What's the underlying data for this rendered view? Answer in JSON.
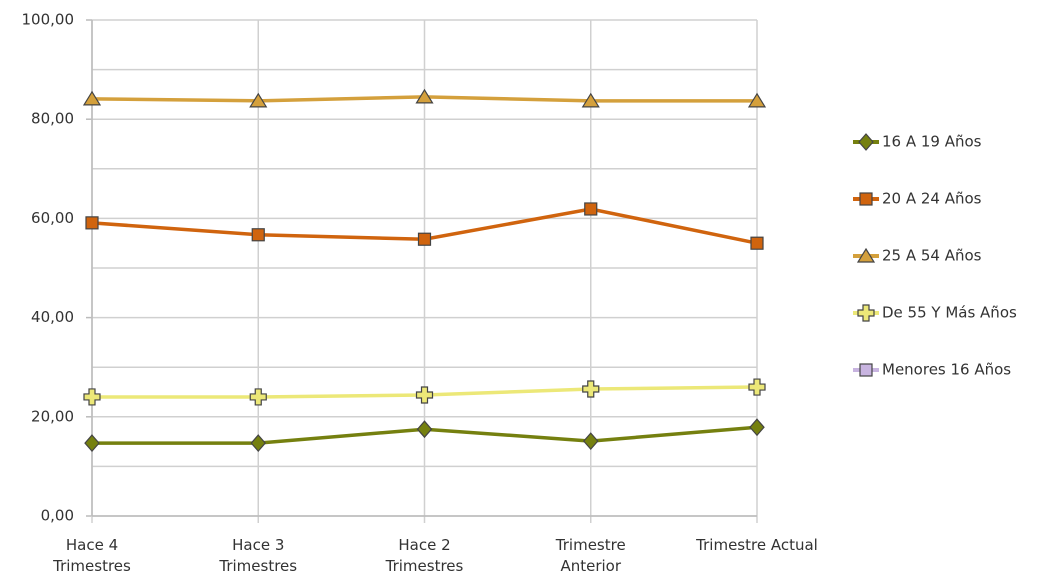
{
  "chart_data": {
    "type": "line",
    "categories": [
      "Hace 4\nTrimestres",
      "Hace 3\nTrimestres",
      "Hace 2\nTrimestres",
      "Trimestre\nAnterior",
      "Trimestre Actual"
    ],
    "series": [
      {
        "name": "16 A 19 Años",
        "color": "#75800f",
        "marker": "diamond",
        "values": [
          14.7,
          14.7,
          17.5,
          15.1,
          17.9
        ]
      },
      {
        "name": "20 A 24 Años",
        "color": "#d0640e",
        "marker": "square",
        "values": [
          59.1,
          56.7,
          55.8,
          61.9,
          55.0
        ]
      },
      {
        "name": "25 A 54 Años",
        "color": "#d4a03c",
        "marker": "triangle",
        "values": [
          84.1,
          83.7,
          84.5,
          83.7,
          83.7
        ]
      },
      {
        "name": "De 55 Y Más Años",
        "color": "#ece878",
        "marker": "plus",
        "values": [
          24.0,
          24.0,
          24.4,
          25.6,
          26.0
        ]
      },
      {
        "name": "Menores 16 Años",
        "color": "#c8b4e0",
        "marker": "square",
        "values": [
          null,
          null,
          null,
          null,
          null
        ]
      }
    ],
    "ylim": [
      0,
      100
    ],
    "yticks": [
      {
        "value": 0,
        "label": "0,00"
      },
      {
        "value": 20,
        "label": "20,00"
      },
      {
        "value": 40,
        "label": "40,00"
      },
      {
        "value": 60,
        "label": "60,00"
      },
      {
        "value": 80,
        "label": "80,00"
      },
      {
        "value": 100,
        "label": "100,00"
      }
    ],
    "minor_yticks": [
      10,
      30,
      50,
      70,
      90
    ],
    "grid": true,
    "legend": "right"
  }
}
